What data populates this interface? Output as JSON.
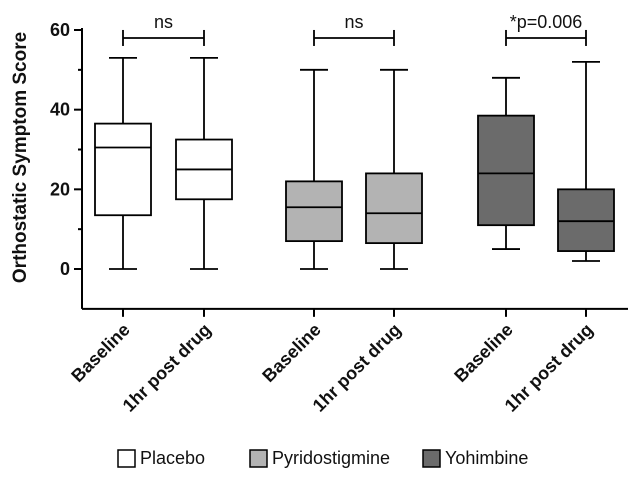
{
  "chart_data": {
    "type": "box",
    "ylabel": "Orthostatic Symptom Score",
    "ylim": [
      -10,
      60
    ],
    "yticks": [
      0,
      20,
      40,
      60
    ],
    "grid": false,
    "legend_position": "bottom",
    "series": [
      {
        "name": "Placebo",
        "color": "#ffffff"
      },
      {
        "name": "Pyridostigmine",
        "color": "#b3b3b3"
      },
      {
        "name": "Yohimbine",
        "color": "#6b6b6b"
      }
    ],
    "boxes": [
      {
        "category": "Baseline",
        "series": "Placebo",
        "min": 0,
        "q1": 13.5,
        "median": 30.5,
        "q3": 36.5,
        "max": 53
      },
      {
        "category": "1hr post drug",
        "series": "Placebo",
        "min": 0,
        "q1": 17.5,
        "median": 25,
        "q3": 32.5,
        "max": 53
      },
      {
        "category": "Baseline",
        "series": "Pyridostigmine",
        "min": 0,
        "q1": 7,
        "median": 15.5,
        "q3": 22,
        "max": 50
      },
      {
        "category": "1hr post drug",
        "series": "Pyridostigmine",
        "min": 0,
        "q1": 6.5,
        "median": 14,
        "q3": 24,
        "max": 50
      },
      {
        "category": "Baseline",
        "series": "Yohimbine",
        "min": 5,
        "q1": 11,
        "median": 24,
        "q3": 38.5,
        "max": 48
      },
      {
        "category": "1hr post drug",
        "series": "Yohimbine",
        "min": 2,
        "q1": 4.5,
        "median": 12,
        "q3": 20,
        "max": 52
      }
    ],
    "annotations": [
      {
        "series": "Placebo",
        "text": "ns",
        "y": 58
      },
      {
        "series": "Pyridostigmine",
        "text": "ns",
        "y": 58
      },
      {
        "series": "Yohimbine",
        "text": "*p=0.006",
        "y": 58
      }
    ]
  }
}
